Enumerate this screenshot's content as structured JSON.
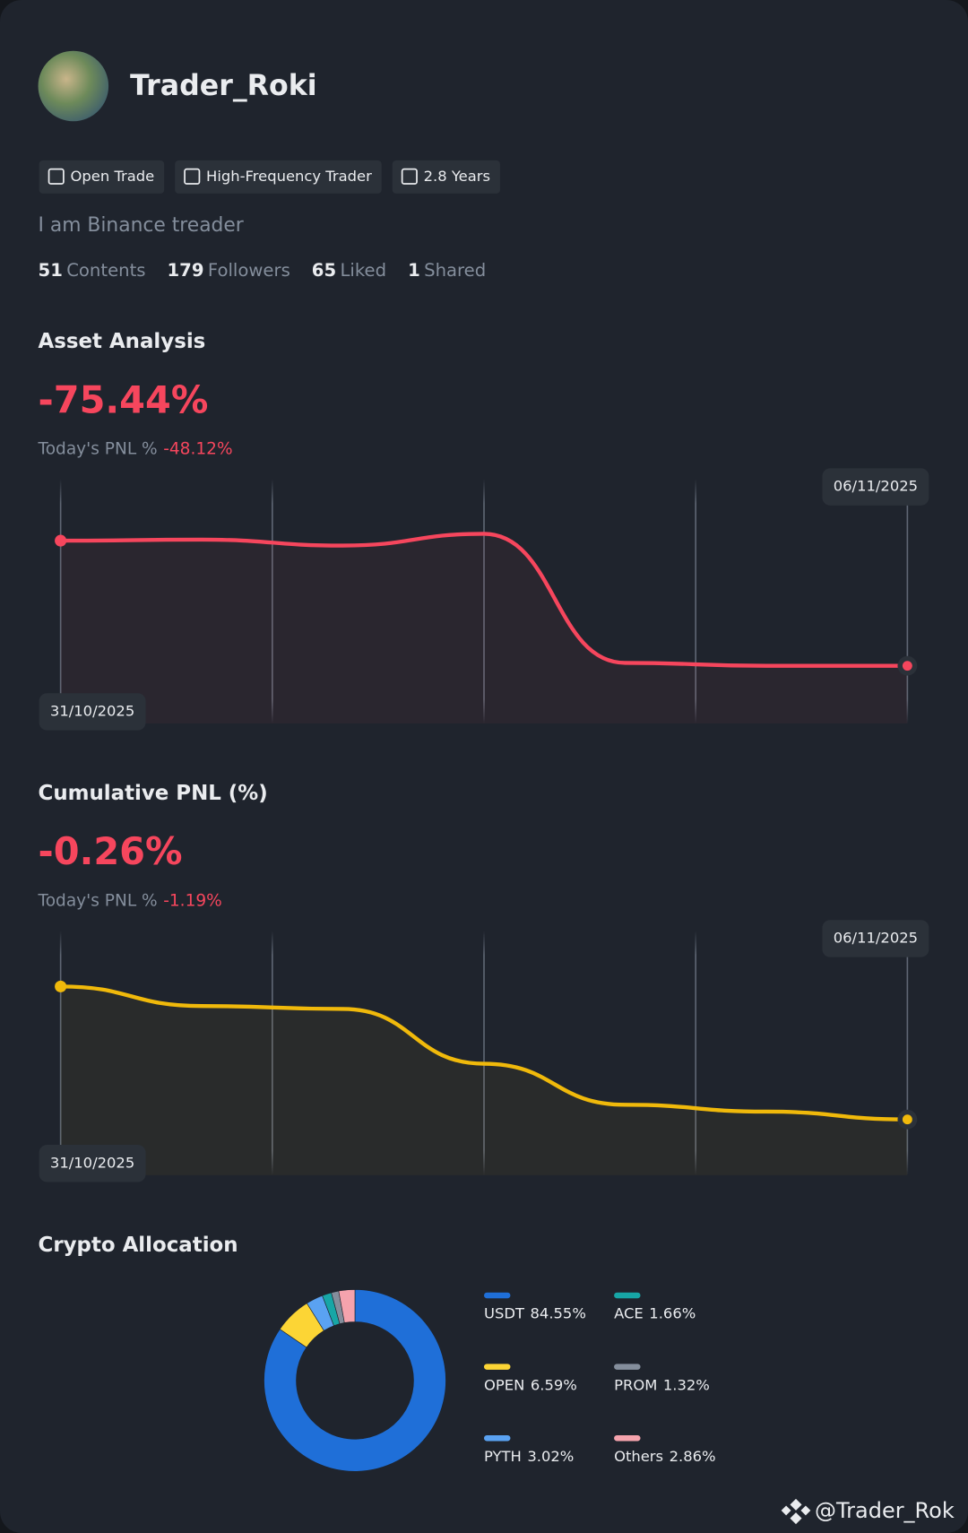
{
  "profile": {
    "name": "Trader_Roki",
    "tags": [
      "Open Trade",
      "High-Frequency Trader",
      "2.8 Years"
    ],
    "bio": "I am Binance treader",
    "stats": [
      {
        "value": 51,
        "label": "Contents"
      },
      {
        "value": 179,
        "label": "Followers"
      },
      {
        "value": 65,
        "label": "Liked"
      },
      {
        "value": 1,
        "label": "Shared"
      }
    ]
  },
  "chart_data": [
    {
      "type": "line",
      "title": "Asset Analysis",
      "headline": "-75.44%",
      "pnl_label": "Today's PNL %",
      "pnl_value": "-48.12%",
      "categories": [
        "31/10/2025",
        null,
        null,
        null,
        null,
        null,
        "06/11/2025"
      ],
      "values": [
        74.8,
        75.2,
        72.8,
        77.6,
        24.8,
        23.6,
        23.6
      ],
      "color": "#f6465d",
      "ylim": [
        0,
        100
      ]
    },
    {
      "type": "line",
      "title": "Cumulative PNL (%)",
      "headline": "-0.26%",
      "pnl_label": "Today's PNL %",
      "pnl_value": "-1.19%",
      "categories": [
        "31/10/2025",
        null,
        null,
        null,
        null,
        null,
        "06/11/2025"
      ],
      "values": [
        77.2,
        69.2,
        68,
        45.6,
        28.8,
        26,
        22.8
      ],
      "color": "#f0b90b",
      "ylim": [
        0,
        100
      ]
    },
    {
      "type": "pie",
      "title": "Crypto Allocation",
      "categories": [
        "USDT",
        "OPEN",
        "PYTH",
        "ACE",
        "PROM",
        "Others"
      ],
      "values": [
        84.55,
        6.59,
        3.02,
        1.66,
        1.32,
        2.86
      ],
      "value_labels": [
        "84.55%",
        "6.59%",
        "3.02%",
        "1.66%",
        "1.32%",
        "2.86%"
      ],
      "colors": [
        "#1f6fd8",
        "#fcd535",
        "#5aa2f2",
        "#17a6a6",
        "#848e9c",
        "#f5a3ad"
      ]
    }
  ],
  "watermark": "@Trader_Rok"
}
